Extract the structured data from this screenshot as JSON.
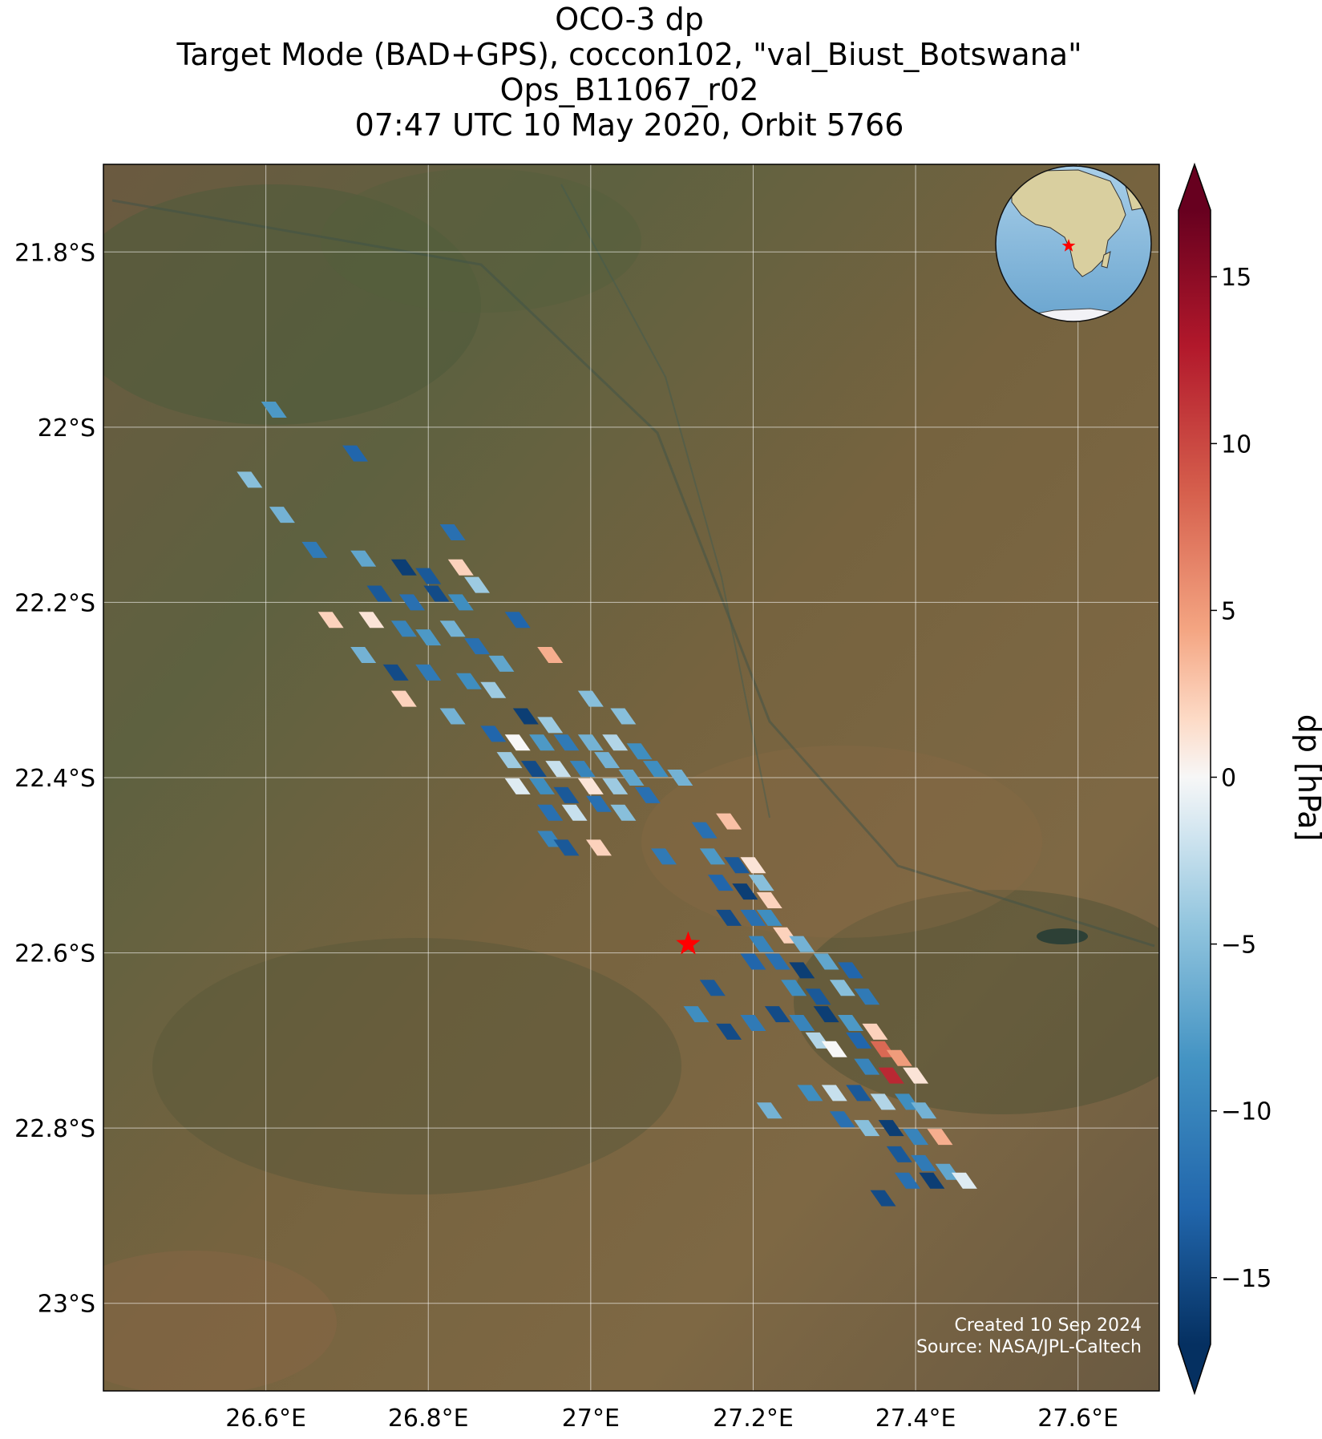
{
  "title": {
    "line1": "OCO-3 dp",
    "line2": "Target Mode (BAD+GPS), coccon102, \"val_Biust_Botswana\"",
    "line3": "Ops_B11067_r02",
    "line4": "07:47 UTC 10 May 2020, Orbit 5766"
  },
  "map": {
    "lon_range": [
      26.4,
      27.7
    ],
    "lat_range": [
      -23.1,
      -21.7
    ],
    "lon_ticks": [
      26.6,
      26.8,
      27.0,
      27.2,
      27.4,
      27.6
    ],
    "lon_tick_labels": [
      "26.6°E",
      "26.8°E",
      "27°E",
      "27.2°E",
      "27.4°E",
      "27.6°E"
    ],
    "lat_ticks": [
      -21.8,
      -22.0,
      -22.2,
      -22.4,
      -22.6,
      -22.8,
      -23.0
    ],
    "lat_tick_labels": [
      "21.8°S",
      "22°S",
      "22.2°S",
      "22.4°S",
      "22.6°S",
      "22.8°S",
      "23°S"
    ],
    "grid": true,
    "basemap": "satellite imagery",
    "target": {
      "lon": 27.12,
      "lat": -22.59,
      "marker": "red-star",
      "color": "#ff0000"
    },
    "inset_globe": {
      "placement": "top-right",
      "continent": "Africa",
      "marker": "red-star"
    }
  },
  "colorbar": {
    "label": "dp [hPa]",
    "range": [
      -17,
      17
    ],
    "ticks": [
      15,
      10,
      5,
      0,
      -5,
      -10,
      -15
    ],
    "tick_labels": [
      "15",
      "10",
      "5",
      "0",
      "−5",
      "−10",
      "−15"
    ],
    "colormap": "RdBu_r",
    "extend": "both"
  },
  "credit": {
    "created": "Created 10 Sep 2024",
    "source": "Source: NASA/JPL-Caltech"
  },
  "chart_data": {
    "type": "scatter",
    "x_name": "longitude",
    "y_name": "latitude",
    "value_name": "dp [hPa]",
    "points": [
      [
        26.61,
        -21.98,
        -8
      ],
      [
        26.71,
        -22.03,
        -13
      ],
      [
        26.58,
        -22.06,
        -5
      ],
      [
        26.62,
        -22.1,
        -6
      ],
      [
        26.83,
        -22.12,
        -12
      ],
      [
        26.66,
        -22.14,
        -11
      ],
      [
        26.72,
        -22.15,
        -7
      ],
      [
        26.77,
        -22.16,
        -16
      ],
      [
        26.8,
        -22.17,
        -14
      ],
      [
        26.84,
        -22.16,
        2
      ],
      [
        26.86,
        -22.18,
        -4
      ],
      [
        26.74,
        -22.19,
        -14
      ],
      [
        26.78,
        -22.2,
        -12
      ],
      [
        26.81,
        -22.19,
        -15
      ],
      [
        26.84,
        -22.2,
        -9
      ],
      [
        26.68,
        -22.22,
        2
      ],
      [
        26.73,
        -22.22,
        1
      ],
      [
        26.77,
        -22.23,
        -10
      ],
      [
        26.8,
        -22.24,
        -8
      ],
      [
        26.83,
        -22.23,
        -6
      ],
      [
        26.86,
        -22.25,
        -12
      ],
      [
        26.91,
        -22.22,
        -13
      ],
      [
        26.95,
        -22.26,
        4
      ],
      [
        26.89,
        -22.27,
        -7
      ],
      [
        26.72,
        -22.26,
        -6
      ],
      [
        26.76,
        -22.28,
        -15
      ],
      [
        26.8,
        -22.28,
        -11
      ],
      [
        26.85,
        -22.29,
        -9
      ],
      [
        26.88,
        -22.3,
        -4
      ],
      [
        26.77,
        -22.31,
        2
      ],
      [
        26.83,
        -22.33,
        -6
      ],
      [
        26.92,
        -22.33,
        -16
      ],
      [
        27.0,
        -22.31,
        -5
      ],
      [
        27.04,
        -22.33,
        -5
      ],
      [
        26.95,
        -22.34,
        -4
      ],
      [
        26.88,
        -22.35,
        -13
      ],
      [
        26.91,
        -22.36,
        0
      ],
      [
        26.94,
        -22.36,
        -8
      ],
      [
        26.97,
        -22.36,
        -11
      ],
      [
        27.0,
        -22.36,
        -6
      ],
      [
        27.03,
        -22.36,
        -3
      ],
      [
        27.06,
        -22.37,
        -9
      ],
      [
        26.9,
        -22.38,
        -4
      ],
      [
        26.93,
        -22.39,
        -15
      ],
      [
        26.96,
        -22.39,
        -2
      ],
      [
        26.99,
        -22.39,
        -10
      ],
      [
        27.02,
        -22.38,
        -6
      ],
      [
        27.05,
        -22.4,
        -7
      ],
      [
        27.08,
        -22.39,
        -9
      ],
      [
        26.91,
        -22.41,
        -1
      ],
      [
        26.94,
        -22.41,
        -9
      ],
      [
        26.97,
        -22.42,
        -14
      ],
      [
        27.0,
        -22.41,
        1
      ],
      [
        27.03,
        -22.41,
        -4
      ],
      [
        27.07,
        -22.42,
        -12
      ],
      [
        27.11,
        -22.4,
        -6
      ],
      [
        26.95,
        -22.44,
        -12
      ],
      [
        26.98,
        -22.44,
        -2
      ],
      [
        27.01,
        -22.43,
        -12
      ],
      [
        27.04,
        -22.44,
        -5
      ],
      [
        26.95,
        -22.47,
        -10
      ],
      [
        26.97,
        -22.48,
        -14
      ],
      [
        27.01,
        -22.48,
        2
      ],
      [
        27.09,
        -22.49,
        -11
      ],
      [
        27.14,
        -22.46,
        -12
      ],
      [
        27.17,
        -22.45,
        3
      ],
      [
        27.15,
        -22.49,
        -8
      ],
      [
        27.18,
        -22.5,
        -14
      ],
      [
        27.2,
        -22.5,
        1
      ],
      [
        27.16,
        -22.52,
        -13
      ],
      [
        27.19,
        -22.53,
        -16
      ],
      [
        27.21,
        -22.52,
        -5
      ],
      [
        27.22,
        -22.54,
        2
      ],
      [
        27.17,
        -22.56,
        -15
      ],
      [
        27.2,
        -22.56,
        -12
      ],
      [
        27.22,
        -22.56,
        -9
      ],
      [
        27.21,
        -22.59,
        -10
      ],
      [
        27.24,
        -22.58,
        2
      ],
      [
        27.26,
        -22.59,
        -6
      ],
      [
        27.23,
        -22.61,
        -12
      ],
      [
        27.26,
        -22.62,
        -16
      ],
      [
        27.29,
        -22.61,
        -7
      ],
      [
        27.32,
        -22.62,
        -13
      ],
      [
        27.25,
        -22.64,
        -9
      ],
      [
        27.28,
        -22.65,
        -14
      ],
      [
        27.31,
        -22.64,
        -5
      ],
      [
        27.34,
        -22.65,
        -11
      ],
      [
        27.23,
        -22.67,
        -15
      ],
      [
        27.26,
        -22.68,
        -10
      ],
      [
        27.29,
        -22.67,
        -16
      ],
      [
        27.32,
        -22.68,
        -8
      ],
      [
        27.35,
        -22.69,
        2
      ],
      [
        27.28,
        -22.7,
        -3
      ],
      [
        27.3,
        -22.71,
        0
      ],
      [
        27.33,
        -22.7,
        -13
      ],
      [
        27.36,
        -22.71,
        8
      ],
      [
        27.38,
        -22.72,
        5
      ],
      [
        27.34,
        -22.73,
        -10
      ],
      [
        27.37,
        -22.74,
        12
      ],
      [
        27.4,
        -22.74,
        1
      ],
      [
        27.27,
        -22.76,
        -9
      ],
      [
        27.3,
        -22.76,
        -2
      ],
      [
        27.33,
        -22.76,
        -14
      ],
      [
        27.36,
        -22.77,
        -3
      ],
      [
        27.39,
        -22.77,
        -9
      ],
      [
        27.41,
        -22.78,
        -6
      ],
      [
        27.31,
        -22.79,
        -12
      ],
      [
        27.34,
        -22.8,
        -5
      ],
      [
        27.37,
        -22.8,
        -16
      ],
      [
        27.4,
        -22.81,
        -10
      ],
      [
        27.43,
        -22.81,
        4
      ],
      [
        27.38,
        -22.83,
        -14
      ],
      [
        27.41,
        -22.84,
        -11
      ],
      [
        27.44,
        -22.85,
        -7
      ],
      [
        27.39,
        -22.86,
        -12
      ],
      [
        27.42,
        -22.86,
        -16
      ],
      [
        27.46,
        -22.86,
        -1
      ],
      [
        27.36,
        -22.88,
        -15
      ],
      [
        27.2,
        -22.61,
        -13
      ],
      [
        27.15,
        -22.64,
        -14
      ],
      [
        27.13,
        -22.67,
        -9
      ],
      [
        27.17,
        -22.69,
        -15
      ],
      [
        27.2,
        -22.68,
        -11
      ],
      [
        27.22,
        -22.78,
        -6
      ]
    ]
  }
}
